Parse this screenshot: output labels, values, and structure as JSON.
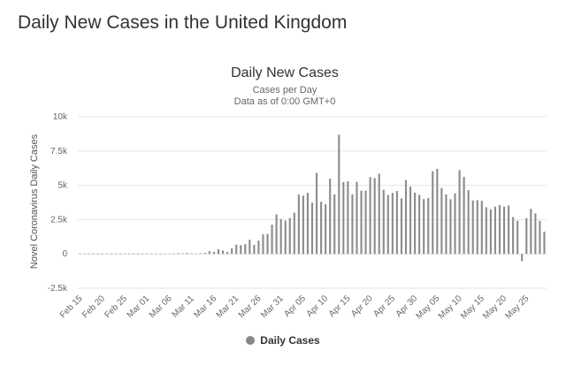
{
  "page": {
    "heading": "Daily New Cases in the United Kingdom"
  },
  "chart_data": {
    "type": "bar",
    "title": "Daily New Cases",
    "subtitle": "Cases per Day",
    "subtitle2": "Data as of 0:00 GMT+0",
    "ylabel": "Novel Coronavirus Daily Cases",
    "ylim": [
      -2500,
      10000
    ],
    "yticks": [
      -2500,
      0,
      2500,
      5000,
      7500,
      10000
    ],
    "ytick_labels": [
      "-2.5k",
      "0",
      "2.5k",
      "5k",
      "7.5k",
      "10k"
    ],
    "xtick_labels": [
      "Feb 15",
      "Feb 20",
      "Feb 25",
      "Mar 01",
      "Mar 06",
      "Mar 11",
      "Mar 16",
      "Mar 21",
      "Mar 26",
      "Mar 31",
      "Apr 05",
      "Apr 10",
      "Apr 15",
      "Apr 20",
      "Apr 25",
      "Apr 30",
      "May 05",
      "May 10",
      "May 15",
      "May 20",
      "May 25"
    ],
    "xtick_step": 5,
    "start_date": "Feb 15",
    "legend": {
      "label": "Daily Cases",
      "position": "bottom-center"
    },
    "grid": true,
    "bar_color": "#8c8c8c",
    "values": [
      0,
      0,
      0,
      0,
      0,
      0,
      0,
      0,
      0,
      0,
      0,
      0,
      0,
      0,
      0,
      0,
      0,
      13,
      4,
      11,
      34,
      30,
      48,
      43,
      67,
      48,
      29,
      48,
      78,
      208,
      152,
      342,
      250,
      152,
      407,
      676,
      643,
      714,
      1035,
      665,
      967,
      1427,
      1452,
      2129,
      2885,
      2546,
      2433,
      2619,
      3009,
      4324,
      4244,
      4450,
      3735,
      5903,
      3802,
      3634,
      5491,
      4344,
      8681,
      5233,
      5288,
      4342,
      5252,
      4603,
      4617,
      5599,
      5525,
      5850,
      4676,
      4301,
      4451,
      4583,
      4051,
      5386,
      4913,
      4463,
      4309,
      3996,
      4076,
      6032,
      6201,
      4806,
      4339,
      3985,
      4406,
      6111,
      5614,
      4649,
      3896,
      3923,
      3877,
      3403,
      3242,
      3446,
      3560,
      3450,
      3534,
      2684,
      2412,
      -525,
      2615,
      3287,
      2959,
      2405,
      1625
    ]
  }
}
